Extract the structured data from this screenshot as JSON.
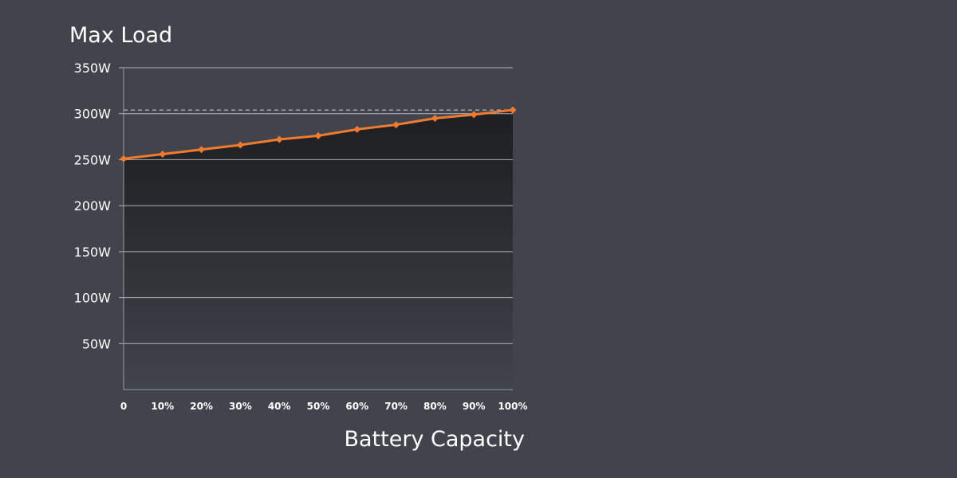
{
  "colors": {
    "background": "#41444c",
    "line": "#f07b2e",
    "area_top": "#1e1f22",
    "area_bottom": "#41444c",
    "grid": "#c8c9cc",
    "axis": "#9a9ca2",
    "reference": "#d0d0d0"
  },
  "chart_data": {
    "type": "area",
    "ylabel": "Max Load",
    "xlabel": "Battery Capacity",
    "categories": [
      "0",
      "10%",
      "20%",
      "30%",
      "40%",
      "50%",
      "60%",
      "70%",
      "80%",
      "90%",
      "100%"
    ],
    "series": [
      {
        "values": [
          251,
          256,
          261,
          266,
          272,
          276,
          283,
          288,
          295,
          299,
          304
        ]
      }
    ],
    "ylim": [
      0,
      350
    ],
    "yticks": [
      50,
      100,
      150,
      200,
      250,
      300,
      350
    ],
    "ytick_labels": [
      "50W",
      "100W",
      "150W",
      "200W",
      "250W",
      "300W",
      "350W"
    ],
    "reference_line": 304,
    "grid": true,
    "marker": "diamond"
  }
}
